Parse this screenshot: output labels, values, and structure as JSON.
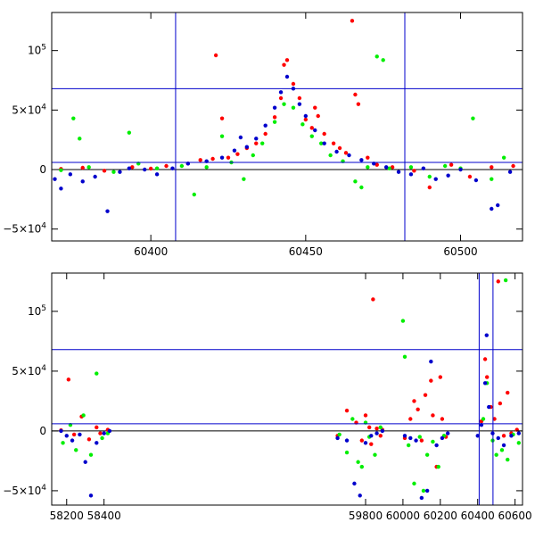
{
  "chart_data": [
    {
      "type": "scatter",
      "panel": "top",
      "xlim": [
        60368,
        60520
      ],
      "ylim": [
        -60000,
        132000
      ],
      "x_ticks": [
        60400,
        60450,
        60500
      ],
      "x_tick_labels": [
        "60400",
        "60450",
        "60500"
      ],
      "y_ticks": [
        -50000,
        0,
        50000,
        100000
      ],
      "y_tick_labels": [
        {
          "m": "−10",
          "e": "4",
          "pre": "−5×"
        },
        {
          "m": "0",
          "e": "",
          "pre": ""
        },
        {
          "m": "10",
          "e": "4",
          "pre": "5×"
        },
        {
          "m": "10",
          "e": "5",
          "pre": ""
        }
      ],
      "hlines": [
        68000,
        6000
      ],
      "vlines": [
        60408,
        60482
      ],
      "hline_color": "#0000cc",
      "series": [
        {
          "color": "#ff0000",
          "points": [
            [
              60371,
              500
            ],
            [
              60378,
              1500
            ],
            [
              60385,
              -1000
            ],
            [
              60394,
              2000
            ],
            [
              60400,
              800
            ],
            [
              60405,
              3000
            ],
            [
              60412,
              5000
            ],
            [
              60416,
              8000
            ],
            [
              60420,
              9000
            ],
            [
              60421,
              96000
            ],
            [
              60423,
              43000
            ],
            [
              60425,
              10000
            ],
            [
              60428,
              13000
            ],
            [
              60431,
              18000
            ],
            [
              60434,
              22000
            ],
            [
              60437,
              30000
            ],
            [
              60440,
              44000
            ],
            [
              60442,
              60000
            ],
            [
              60443,
              88000
            ],
            [
              60444,
              92000
            ],
            [
              60446,
              72000
            ],
            [
              60448,
              60000
            ],
            [
              60450,
              42000
            ],
            [
              60452,
              35000
            ],
            [
              60453,
              52000
            ],
            [
              60454,
              45000
            ],
            [
              60456,
              30000
            ],
            [
              60459,
              22000
            ],
            [
              60461,
              18000
            ],
            [
              60463,
              14000
            ],
            [
              60465,
              125000
            ],
            [
              60466,
              63000
            ],
            [
              60467,
              55000
            ],
            [
              60470,
              10000
            ],
            [
              60473,
              4000
            ],
            [
              60478,
              2000
            ],
            [
              60485,
              -1000
            ],
            [
              60490,
              -15000
            ],
            [
              60497,
              4000
            ],
            [
              60503,
              -6000
            ],
            [
              60510,
              2000
            ],
            [
              60517,
              3000
            ]
          ]
        },
        {
          "color": "#00ee00",
          "points": [
            [
              60371,
              -500
            ],
            [
              60375,
              43000
            ],
            [
              60377,
              26000
            ],
            [
              60380,
              2000
            ],
            [
              60388,
              -2000
            ],
            [
              60393,
              31000
            ],
            [
              60396,
              5000
            ],
            [
              60402,
              1000
            ],
            [
              60410,
              3000
            ],
            [
              60414,
              -21000
            ],
            [
              60418,
              2000
            ],
            [
              60423,
              28000
            ],
            [
              60426,
              6000
            ],
            [
              60430,
              -8000
            ],
            [
              60433,
              12000
            ],
            [
              60436,
              22000
            ],
            [
              60440,
              40000
            ],
            [
              60443,
              55000
            ],
            [
              60446,
              52000
            ],
            [
              60449,
              38000
            ],
            [
              60452,
              28000
            ],
            [
              60455,
              22000
            ],
            [
              60458,
              12000
            ],
            [
              60462,
              7000
            ],
            [
              60466,
              -10000
            ],
            [
              60468,
              -15000
            ],
            [
              60470,
              2000
            ],
            [
              60473,
              95000
            ],
            [
              60475,
              92000
            ],
            [
              60477,
              1000
            ],
            [
              60484,
              2000
            ],
            [
              60490,
              -6000
            ],
            [
              60495,
              3000
            ],
            [
              60500,
              1000
            ],
            [
              60504,
              43000
            ],
            [
              60510,
              -8000
            ],
            [
              60514,
              10000
            ]
          ]
        },
        {
          "color": "#0000cc",
          "points": [
            [
              60369,
              -8000
            ],
            [
              60371,
              -16000
            ],
            [
              60374,
              -4000
            ],
            [
              60378,
              -10000
            ],
            [
              60382,
              -6000
            ],
            [
              60386,
              -35000
            ],
            [
              60390,
              -2000
            ],
            [
              60393,
              1000
            ],
            [
              60398,
              0
            ],
            [
              60402,
              -4000
            ],
            [
              60407,
              1000
            ],
            [
              60412,
              5000
            ],
            [
              60418,
              7000
            ],
            [
              60423,
              10000
            ],
            [
              60427,
              16000
            ],
            [
              60429,
              27000
            ],
            [
              60431,
              19000
            ],
            [
              60434,
              26000
            ],
            [
              60437,
              37000
            ],
            [
              60440,
              52000
            ],
            [
              60442,
              65000
            ],
            [
              60444,
              78000
            ],
            [
              60446,
              68000
            ],
            [
              60448,
              55000
            ],
            [
              60450,
              45000
            ],
            [
              60453,
              33000
            ],
            [
              60456,
              22000
            ],
            [
              60460,
              15000
            ],
            [
              60464,
              12000
            ],
            [
              60468,
              8000
            ],
            [
              60472,
              5000
            ],
            [
              60476,
              2000
            ],
            [
              60480,
              -2000
            ],
            [
              60484,
              -4000
            ],
            [
              60488,
              1000
            ],
            [
              60492,
              -8000
            ],
            [
              60496,
              -5000
            ],
            [
              60500,
              0
            ],
            [
              60505,
              -9000
            ],
            [
              60510,
              -33000
            ],
            [
              60512,
              -30000
            ],
            [
              60516,
              -2000
            ]
          ]
        }
      ]
    },
    {
      "type": "scatter",
      "panel": "bottom",
      "xlim": [
        58120,
        60640
      ],
      "ylim": [
        -62000,
        132000
      ],
      "x_ticks": [
        58200,
        58400,
        59800,
        60000,
        60200,
        60400,
        60600
      ],
      "x_tick_labels": [
        "58200",
        "58400",
        "59800",
        "60000",
        "60200",
        "60400",
        "60600"
      ],
      "y_ticks": [
        -50000,
        0,
        50000,
        100000
      ],
      "y_tick_labels": [
        {
          "m": "−10",
          "e": "4",
          "pre": "−5×"
        },
        {
          "m": "0",
          "e": "",
          "pre": ""
        },
        {
          "m": "10",
          "e": "4",
          "pre": "5×"
        },
        {
          "m": "10",
          "e": "5",
          "pre": ""
        }
      ],
      "hlines": [
        68000,
        6000
      ],
      "vlines": [
        60408,
        60482
      ],
      "hline_color": "#0000cc",
      "series": [
        {
          "color": "#ff0000",
          "points": [
            [
              58170,
              500
            ],
            [
              58210,
              43000
            ],
            [
              58240,
              -3000
            ],
            [
              58280,
              12000
            ],
            [
              58320,
              -7000
            ],
            [
              58360,
              3000
            ],
            [
              58380,
              -2000
            ],
            [
              58420,
              1000
            ],
            [
              59650,
              -4000
            ],
            [
              59700,
              17000
            ],
            [
              59750,
              7000
            ],
            [
              59780,
              -8000
            ],
            [
              59800,
              13000
            ],
            [
              59820,
              3000
            ],
            [
              59830,
              -11000
            ],
            [
              59840,
              110000
            ],
            [
              59860,
              2000
            ],
            [
              59880,
              -4000
            ],
            [
              59890,
              1000
            ],
            [
              60010,
              -6000
            ],
            [
              60040,
              10000
            ],
            [
              60060,
              25000
            ],
            [
              60080,
              18000
            ],
            [
              60100,
              -8000
            ],
            [
              60120,
              30000
            ],
            [
              60150,
              42000
            ],
            [
              60160,
              13000
            ],
            [
              60180,
              -30000
            ],
            [
              60200,
              45000
            ],
            [
              60210,
              10000
            ],
            [
              60230,
              -5000
            ],
            [
              60420,
              8000
            ],
            [
              60440,
              60000
            ],
            [
              60450,
              45000
            ],
            [
              60470,
              20000
            ],
            [
              60490,
              10000
            ],
            [
              60510,
              125000
            ],
            [
              60520,
              23000
            ],
            [
              60540,
              -4000
            ],
            [
              60560,
              32000
            ],
            [
              60580,
              -2000
            ],
            [
              60610,
              1000
            ]
          ]
        },
        {
          "color": "#00ee00",
          "points": [
            [
              58180,
              -10000
            ],
            [
              58220,
              5000
            ],
            [
              58250,
              -16000
            ],
            [
              58290,
              13000
            ],
            [
              58330,
              -20000
            ],
            [
              58360,
              48000
            ],
            [
              58390,
              -6000
            ],
            [
              58420,
              -2000
            ],
            [
              59660,
              -3000
            ],
            [
              59700,
              -18000
            ],
            [
              59730,
              10000
            ],
            [
              59760,
              -26000
            ],
            [
              59780,
              -30000
            ],
            [
              59800,
              7000
            ],
            [
              59820,
              -5000
            ],
            [
              59850,
              -20000
            ],
            [
              59880,
              3000
            ],
            [
              60000,
              92000
            ],
            [
              60010,
              62000
            ],
            [
              60030,
              -12000
            ],
            [
              60060,
              -44000
            ],
            [
              60090,
              -5000
            ],
            [
              60110,
              -50000
            ],
            [
              60130,
              -20000
            ],
            [
              60160,
              -9000
            ],
            [
              60190,
              -30000
            ],
            [
              60220,
              -4000
            ],
            [
              60430,
              10000
            ],
            [
              60450,
              40000
            ],
            [
              60480,
              -8000
            ],
            [
              60500,
              -20000
            ],
            [
              60530,
              -16000
            ],
            [
              60550,
              126000
            ],
            [
              60560,
              -24000
            ],
            [
              60590,
              -3000
            ],
            [
              60620,
              -10000
            ]
          ]
        },
        {
          "color": "#0000cc",
          "points": [
            [
              58170,
              0
            ],
            [
              58200,
              -4000
            ],
            [
              58230,
              -8000
            ],
            [
              58270,
              -3000
            ],
            [
              58300,
              -26000
            ],
            [
              58330,
              -54000
            ],
            [
              58360,
              -10000
            ],
            [
              58400,
              -2000
            ],
            [
              58430,
              0
            ],
            [
              59650,
              -6000
            ],
            [
              59700,
              -8000
            ],
            [
              59740,
              -44000
            ],
            [
              59770,
              -54000
            ],
            [
              59800,
              -10000
            ],
            [
              59830,
              -4000
            ],
            [
              59860,
              -2000
            ],
            [
              59890,
              0
            ],
            [
              60010,
              -4000
            ],
            [
              60040,
              -6000
            ],
            [
              60070,
              -8000
            ],
            [
              60100,
              -56000
            ],
            [
              60130,
              -50000
            ],
            [
              60150,
              58000
            ],
            [
              60180,
              -12000
            ],
            [
              60210,
              -6000
            ],
            [
              60240,
              -2000
            ],
            [
              60400,
              -4000
            ],
            [
              60420,
              5000
            ],
            [
              60440,
              40000
            ],
            [
              60448,
              80000
            ],
            [
              60460,
              20000
            ],
            [
              60480,
              -2000
            ],
            [
              60510,
              -6000
            ],
            [
              60540,
              -12000
            ],
            [
              60580,
              -4000
            ],
            [
              60620,
              -2000
            ]
          ]
        }
      ]
    }
  ]
}
